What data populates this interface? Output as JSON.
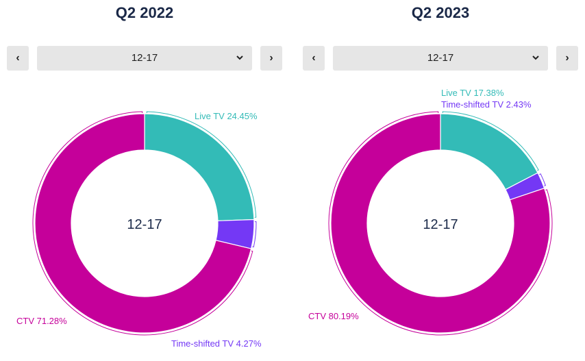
{
  "chart_data": [
    {
      "type": "pie",
      "title": "Q2 2022",
      "selected_segment": "12-17",
      "center_label": "12-17",
      "slices": [
        {
          "label": "Live TV",
          "value": 24.45,
          "text": "Live TV 24.45%",
          "color": "#33bbb7"
        },
        {
          "label": "Time-shifted TV",
          "value": 4.27,
          "text": "Time-shifted TV 4.27%",
          "color": "#7438f5"
        },
        {
          "label": "CTV",
          "value": 71.28,
          "text": "CTV 71.28%",
          "color": "#c5009a"
        }
      ]
    },
    {
      "type": "pie",
      "title": "Q2 2023",
      "selected_segment": "12-17",
      "center_label": "12-17",
      "slices": [
        {
          "label": "Live TV",
          "value": 17.38,
          "text": "Live TV 17.38%",
          "color": "#33bbb7"
        },
        {
          "label": "Time-shifted TV",
          "value": 2.43,
          "text": "Time-shifted TV 2.43%",
          "color": "#7438f5"
        },
        {
          "label": "CTV",
          "value": 80.19,
          "text": "CTV 80.19%",
          "color": "#c5009a"
        }
      ]
    }
  ],
  "icons": {
    "prev": "chevron-left-icon",
    "next": "chevron-right-icon",
    "dropdown": "chevron-down-icon"
  }
}
